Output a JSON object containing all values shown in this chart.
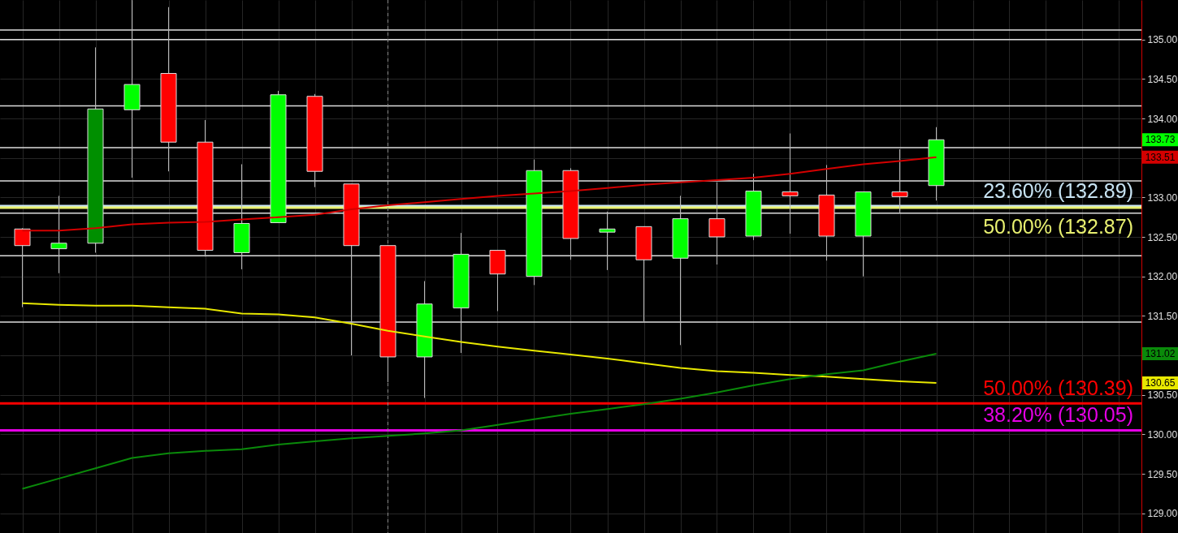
{
  "chart_data": {
    "type": "candlestick",
    "categories": [
      null,
      null,
      null,
      null,
      null,
      null,
      null,
      null,
      null,
      null,
      null,
      null,
      null,
      null,
      null,
      null,
      null,
      null,
      null,
      null,
      null,
      null,
      null,
      null,
      null,
      null,
      null,
      null,
      null,
      null,
      null
    ],
    "ohlc": [
      [
        132.6,
        132.61,
        131.61,
        132.39
      ],
      [
        132.35,
        133.02,
        132.04,
        132.42
      ],
      [
        132.42,
        134.9,
        132.3,
        134.12
      ],
      [
        134.11,
        135.5,
        133.25,
        134.43
      ],
      [
        134.57,
        135.41,
        133.33,
        133.7
      ],
      [
        133.7,
        133.98,
        132.25,
        132.33
      ],
      [
        132.3,
        133.42,
        132.09,
        132.67
      ],
      [
        132.68,
        134.35,
        132.68,
        134.3
      ],
      [
        134.28,
        134.31,
        133.13,
        133.33
      ],
      [
        133.17,
        133.17,
        131.0,
        132.39
      ],
      [
        132.39,
        132.39,
        130.66,
        130.98
      ],
      [
        130.98,
        131.94,
        130.46,
        131.65
      ],
      [
        131.6,
        132.55,
        131.03,
        132.28
      ],
      [
        132.33,
        132.33,
        131.56,
        132.03
      ],
      [
        132.0,
        133.48,
        131.89,
        133.34
      ],
      [
        133.34,
        133.37,
        132.21,
        132.48
      ],
      [
        132.56,
        132.82,
        132.08,
        132.6
      ],
      [
        132.63,
        132.63,
        131.43,
        132.21
      ],
      [
        132.23,
        133.02,
        131.13,
        132.73
      ],
      [
        132.73,
        133.19,
        132.15,
        132.5
      ],
      [
        132.51,
        133.3,
        132.46,
        133.08
      ],
      [
        133.07,
        133.81,
        132.54,
        133.02
      ],
      [
        133.03,
        133.41,
        132.2,
        132.51
      ],
      [
        132.51,
        133.07,
        132.0,
        133.07
      ],
      [
        133.07,
        133.61,
        132.81,
        133.01
      ],
      [
        133.15,
        133.89,
        132.96,
        133.73
      ],
      null,
      null,
      null,
      null,
      null
    ],
    "colors": [
      "#ff0000",
      "#00ff00",
      "#008f00",
      "#00ff00",
      "#ff0000",
      "#ff0000",
      "#00ff00",
      "#00ff00",
      "#ff0000",
      "#ff0000",
      "#ff0000",
      "#00ff00",
      "#00ff00",
      "#ff0000",
      "#00ff00",
      "#ff0000",
      "#00ff00",
      "#ff0000",
      "#00ff00",
      "#ff0000",
      "#00ff00",
      "#ff0000",
      "#ff0000",
      "#00ff00",
      "#ff0000",
      "#00ff00",
      null,
      null,
      null,
      null,
      null
    ],
    "series": [
      {
        "type": "line",
        "color": "#d40000",
        "values": [
          132.58,
          132.58,
          132.61,
          132.66,
          132.68,
          132.69,
          132.72,
          132.75,
          132.78,
          132.85,
          132.9,
          132.94,
          132.98,
          133.02,
          133.05,
          133.08,
          133.12,
          133.16,
          133.19,
          133.22,
          133.25,
          133.3,
          133.36,
          133.42,
          133.46,
          133.51,
          null,
          null,
          null,
          null,
          null
        ]
      },
      {
        "type": "line",
        "color": "#e8e800",
        "values": [
          131.66,
          131.64,
          131.63,
          131.63,
          131.61,
          131.59,
          131.53,
          131.52,
          131.48,
          131.4,
          131.31,
          131.24,
          131.17,
          131.11,
          131.06,
          131.01,
          130.96,
          130.9,
          130.84,
          130.8,
          130.78,
          130.75,
          130.73,
          130.7,
          130.67,
          130.65,
          null,
          null,
          null,
          null,
          null
        ]
      },
      {
        "type": "line",
        "color": "#0a8a0a",
        "values": [
          129.31,
          129.44,
          129.57,
          129.7,
          129.76,
          129.79,
          129.81,
          129.87,
          129.91,
          129.95,
          129.98,
          130.01,
          130.05,
          130.12,
          130.19,
          130.26,
          130.32,
          130.38,
          130.45,
          130.53,
          130.62,
          130.7,
          130.76,
          130.81,
          130.92,
          131.02,
          null,
          null,
          null,
          null,
          null
        ]
      }
    ],
    "ylim": [
      128.75,
      135.5
    ],
    "yticks": [
      {
        "value": 129,
        "label": "129.00"
      },
      {
        "value": 129.5,
        "label": "129.50"
      },
      {
        "value": 130,
        "label": "130.00"
      },
      {
        "value": 130.5,
        "label": "130.50"
      },
      {
        "value": 131,
        "label": null
      },
      {
        "value": 131.5,
        "label": "131.50"
      },
      {
        "value": 132,
        "label": "132.00"
      },
      {
        "value": 132.5,
        "label": "132.50"
      },
      {
        "value": 133,
        "label": "133.00"
      },
      {
        "value": 133.5,
        "label": null
      },
      {
        "value": 134,
        "label": "134.00"
      },
      {
        "value": 134.5,
        "label": "134.50"
      },
      {
        "value": 135,
        "label": "135.00"
      }
    ],
    "grid": true,
    "tick_labels": "y",
    "ref_lines": [
      {
        "axis": "y",
        "value": 135.12,
        "color": "#dcdcdc"
      },
      {
        "axis": "y",
        "value": 135.0,
        "color": "#dcdcdc"
      },
      {
        "axis": "y",
        "value": 134.16,
        "color": "#dcdcdc"
      },
      {
        "axis": "y",
        "value": 133.63,
        "color": "#dcdcdc"
      },
      {
        "axis": "y",
        "value": 133.21,
        "color": "#dcdcdc"
      },
      {
        "axis": "y",
        "value": 132.89,
        "label": "23.60% (132.89)",
        "color": "#c8e4f4"
      },
      {
        "axis": "y",
        "value": 132.87,
        "label": "50.00% (132.87)",
        "color": "#e8f070"
      },
      {
        "axis": "y",
        "value": 132.8,
        "color": "#dcdcdc"
      },
      {
        "axis": "y",
        "value": 132.26,
        "color": "#dcdcdc"
      },
      {
        "axis": "y",
        "value": 131.42,
        "color": "#dcdcdc"
      },
      {
        "axis": "y",
        "value": 130.39,
        "label": "50.00% (130.39)",
        "color": "#ff0000"
      },
      {
        "axis": "y",
        "value": 130.05,
        "label": "38.20% (130.05)",
        "color": "#e600e6"
      }
    ],
    "annotations": [
      {
        "text": "133.73",
        "y": 133.73
      },
      {
        "text": "133.51",
        "y": 133.51
      },
      {
        "text": "131.02",
        "y": 131.02
      },
      {
        "text": "130.65",
        "y": 130.65
      }
    ]
  }
}
